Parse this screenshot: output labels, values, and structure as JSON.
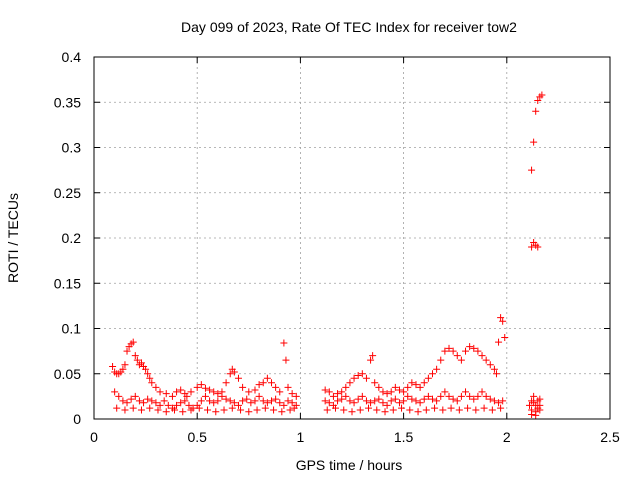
{
  "chart_data": {
    "type": "scatter",
    "title": "Day 099 of 2023, Rate Of TEC Index for receiver tow2",
    "xlabel": "GPS time / hours",
    "ylabel": "ROTI / TECUs",
    "xlim": [
      0,
      2.5
    ],
    "ylim": [
      0,
      0.4
    ],
    "x_ticks": [
      0,
      0.5,
      1,
      1.5,
      2,
      2.5
    ],
    "x_tick_labels": [
      "0",
      "0.5",
      "1",
      "1.5",
      "2",
      "2.5"
    ],
    "y_ticks": [
      0,
      0.05,
      0.1,
      0.15,
      0.2,
      0.25,
      0.3,
      0.35,
      0.4
    ],
    "y_tick_labels": [
      "0",
      "0.05",
      "0.1",
      "0.15",
      "0.2",
      "0.25",
      "0.3",
      "0.35",
      "0.4"
    ],
    "grid": true,
    "marker": "+",
    "series": [
      {
        "color": "#ff0000",
        "points": [
          [
            0.09,
            0.058
          ],
          [
            0.1,
            0.052
          ],
          [
            0.11,
            0.05
          ],
          [
            0.12,
            0.05
          ],
          [
            0.13,
            0.052
          ],
          [
            0.14,
            0.055
          ],
          [
            0.15,
            0.06
          ],
          [
            0.16,
            0.075
          ],
          [
            0.17,
            0.08
          ],
          [
            0.18,
            0.083
          ],
          [
            0.19,
            0.085
          ],
          [
            0.2,
            0.07
          ],
          [
            0.21,
            0.065
          ],
          [
            0.22,
            0.06
          ],
          [
            0.23,
            0.062
          ],
          [
            0.24,
            0.058
          ],
          [
            0.25,
            0.055
          ],
          [
            0.26,
            0.05
          ],
          [
            0.27,
            0.045
          ],
          [
            0.28,
            0.04
          ],
          [
            0.3,
            0.035
          ],
          [
            0.32,
            0.03
          ],
          [
            0.35,
            0.028
          ],
          [
            0.38,
            0.025
          ],
          [
            0.4,
            0.03
          ],
          [
            0.42,
            0.032
          ],
          [
            0.44,
            0.028
          ],
          [
            0.45,
            0.025
          ],
          [
            0.47,
            0.03
          ],
          [
            0.5,
            0.035
          ],
          [
            0.52,
            0.038
          ],
          [
            0.54,
            0.034
          ],
          [
            0.56,
            0.032
          ],
          [
            0.58,
            0.03
          ],
          [
            0.6,
            0.028
          ],
          [
            0.62,
            0.03
          ],
          [
            0.64,
            0.04
          ],
          [
            0.66,
            0.05
          ],
          [
            0.67,
            0.055
          ],
          [
            0.68,
            0.052
          ],
          [
            0.7,
            0.045
          ],
          [
            0.72,
            0.035
          ],
          [
            0.75,
            0.03
          ],
          [
            0.78,
            0.032
          ],
          [
            0.8,
            0.038
          ],
          [
            0.82,
            0.04
          ],
          [
            0.84,
            0.045
          ],
          [
            0.86,
            0.04
          ],
          [
            0.88,
            0.035
          ],
          [
            0.9,
            0.03
          ],
          [
            0.92,
            0.084
          ],
          [
            0.93,
            0.065
          ],
          [
            0.94,
            0.035
          ],
          [
            0.96,
            0.028
          ],
          [
            0.98,
            0.025
          ],
          [
            0.1,
            0.03
          ],
          [
            0.12,
            0.025
          ],
          [
            0.14,
            0.02
          ],
          [
            0.16,
            0.018
          ],
          [
            0.18,
            0.022
          ],
          [
            0.2,
            0.025
          ],
          [
            0.22,
            0.02
          ],
          [
            0.24,
            0.018
          ],
          [
            0.26,
            0.022
          ],
          [
            0.28,
            0.02
          ],
          [
            0.3,
            0.018
          ],
          [
            0.32,
            0.015
          ],
          [
            0.34,
            0.02
          ],
          [
            0.36,
            0.015
          ],
          [
            0.38,
            0.012
          ],
          [
            0.4,
            0.015
          ],
          [
            0.42,
            0.018
          ],
          [
            0.44,
            0.02
          ],
          [
            0.46,
            0.015
          ],
          [
            0.48,
            0.012
          ],
          [
            0.5,
            0.015
          ],
          [
            0.52,
            0.02
          ],
          [
            0.54,
            0.025
          ],
          [
            0.56,
            0.02
          ],
          [
            0.58,
            0.018
          ],
          [
            0.6,
            0.02
          ],
          [
            0.62,
            0.025
          ],
          [
            0.64,
            0.022
          ],
          [
            0.66,
            0.02
          ],
          [
            0.68,
            0.018
          ],
          [
            0.7,
            0.015
          ],
          [
            0.72,
            0.02
          ],
          [
            0.74,
            0.022
          ],
          [
            0.76,
            0.018
          ],
          [
            0.78,
            0.02
          ],
          [
            0.8,
            0.025
          ],
          [
            0.82,
            0.02
          ],
          [
            0.84,
            0.018
          ],
          [
            0.86,
            0.02
          ],
          [
            0.88,
            0.022
          ],
          [
            0.9,
            0.018
          ],
          [
            0.92,
            0.015
          ],
          [
            0.94,
            0.02
          ],
          [
            0.96,
            0.018
          ],
          [
            0.98,
            0.015
          ],
          [
            0.11,
            0.012
          ],
          [
            0.15,
            0.01
          ],
          [
            0.19,
            0.012
          ],
          [
            0.23,
            0.01
          ],
          [
            0.27,
            0.012
          ],
          [
            0.31,
            0.01
          ],
          [
            0.35,
            0.008
          ],
          [
            0.39,
            0.01
          ],
          [
            0.43,
            0.008
          ],
          [
            0.47,
            0.01
          ],
          [
            0.51,
            0.012
          ],
          [
            0.55,
            0.01
          ],
          [
            0.59,
            0.008
          ],
          [
            0.63,
            0.01
          ],
          [
            0.67,
            0.012
          ],
          [
            0.71,
            0.01
          ],
          [
            0.75,
            0.008
          ],
          [
            0.79,
            0.01
          ],
          [
            0.83,
            0.012
          ],
          [
            0.87,
            0.01
          ],
          [
            0.91,
            0.008
          ],
          [
            0.95,
            0.01
          ],
          [
            0.97,
            0.012
          ],
          [
            1.12,
            0.032
          ],
          [
            1.14,
            0.03
          ],
          [
            1.16,
            0.025
          ],
          [
            1.18,
            0.028
          ],
          [
            1.2,
            0.03
          ],
          [
            1.22,
            0.035
          ],
          [
            1.24,
            0.04
          ],
          [
            1.26,
            0.045
          ],
          [
            1.28,
            0.048
          ],
          [
            1.3,
            0.05
          ],
          [
            1.32,
            0.045
          ],
          [
            1.34,
            0.065
          ],
          [
            1.35,
            0.07
          ],
          [
            1.36,
            0.04
          ],
          [
            1.38,
            0.035
          ],
          [
            1.4,
            0.03
          ],
          [
            1.42,
            0.028
          ],
          [
            1.44,
            0.03
          ],
          [
            1.46,
            0.035
          ],
          [
            1.48,
            0.032
          ],
          [
            1.5,
            0.03
          ],
          [
            1.52,
            0.035
          ],
          [
            1.54,
            0.04
          ],
          [
            1.56,
            0.038
          ],
          [
            1.58,
            0.035
          ],
          [
            1.6,
            0.04
          ],
          [
            1.62,
            0.045
          ],
          [
            1.64,
            0.05
          ],
          [
            1.66,
            0.055
          ],
          [
            1.68,
            0.065
          ],
          [
            1.7,
            0.075
          ],
          [
            1.72,
            0.078
          ],
          [
            1.74,
            0.075
          ],
          [
            1.76,
            0.07
          ],
          [
            1.78,
            0.065
          ],
          [
            1.8,
            0.075
          ],
          [
            1.82,
            0.08
          ],
          [
            1.84,
            0.078
          ],
          [
            1.86,
            0.075
          ],
          [
            1.88,
            0.07
          ],
          [
            1.9,
            0.065
          ],
          [
            1.92,
            0.06
          ],
          [
            1.94,
            0.055
          ],
          [
            1.96,
            0.085
          ],
          [
            1.97,
            0.112
          ],
          [
            1.98,
            0.108
          ],
          [
            1.99,
            0.09
          ],
          [
            1.95,
            0.05
          ],
          [
            1.12,
            0.02
          ],
          [
            1.14,
            0.018
          ],
          [
            1.16,
            0.015
          ],
          [
            1.18,
            0.02
          ],
          [
            1.2,
            0.022
          ],
          [
            1.22,
            0.025
          ],
          [
            1.24,
            0.02
          ],
          [
            1.26,
            0.018
          ],
          [
            1.28,
            0.022
          ],
          [
            1.3,
            0.025
          ],
          [
            1.32,
            0.02
          ],
          [
            1.34,
            0.018
          ],
          [
            1.36,
            0.02
          ],
          [
            1.38,
            0.022
          ],
          [
            1.4,
            0.018
          ],
          [
            1.42,
            0.015
          ],
          [
            1.44,
            0.02
          ],
          [
            1.46,
            0.022
          ],
          [
            1.48,
            0.018
          ],
          [
            1.5,
            0.02
          ],
          [
            1.52,
            0.025
          ],
          [
            1.54,
            0.022
          ],
          [
            1.56,
            0.02
          ],
          [
            1.58,
            0.018
          ],
          [
            1.6,
            0.022
          ],
          [
            1.62,
            0.025
          ],
          [
            1.64,
            0.022
          ],
          [
            1.66,
            0.02
          ],
          [
            1.68,
            0.025
          ],
          [
            1.7,
            0.03
          ],
          [
            1.72,
            0.025
          ],
          [
            1.74,
            0.022
          ],
          [
            1.76,
            0.02
          ],
          [
            1.78,
            0.025
          ],
          [
            1.8,
            0.03
          ],
          [
            1.82,
            0.025
          ],
          [
            1.84,
            0.022
          ],
          [
            1.86,
            0.025
          ],
          [
            1.88,
            0.03
          ],
          [
            1.9,
            0.025
          ],
          [
            1.92,
            0.022
          ],
          [
            1.94,
            0.02
          ],
          [
            1.96,
            0.018
          ],
          [
            1.98,
            0.02
          ],
          [
            1.13,
            0.01
          ],
          [
            1.17,
            0.012
          ],
          [
            1.21,
            0.01
          ],
          [
            1.25,
            0.008
          ],
          [
            1.29,
            0.01
          ],
          [
            1.33,
            0.012
          ],
          [
            1.37,
            0.01
          ],
          [
            1.41,
            0.008
          ],
          [
            1.45,
            0.01
          ],
          [
            1.49,
            0.012
          ],
          [
            1.53,
            0.01
          ],
          [
            1.57,
            0.008
          ],
          [
            1.61,
            0.01
          ],
          [
            1.65,
            0.012
          ],
          [
            1.69,
            0.01
          ],
          [
            1.73,
            0.012
          ],
          [
            1.77,
            0.01
          ],
          [
            1.81,
            0.012
          ],
          [
            1.85,
            0.01
          ],
          [
            1.89,
            0.012
          ],
          [
            1.93,
            0.01
          ],
          [
            1.97,
            0.012
          ],
          [
            2.12,
            0.275
          ],
          [
            2.13,
            0.306
          ],
          [
            2.14,
            0.34
          ],
          [
            2.15,
            0.352
          ],
          [
            2.16,
            0.356
          ],
          [
            2.17,
            0.358
          ],
          [
            2.12,
            0.19
          ],
          [
            2.13,
            0.195
          ],
          [
            2.14,
            0.192
          ],
          [
            2.15,
            0.19
          ],
          [
            2.12,
            0.02
          ],
          [
            2.13,
            0.018
          ],
          [
            2.14,
            0.015
          ],
          [
            2.15,
            0.012
          ],
          [
            2.16,
            0.015
          ],
          [
            2.12,
            0.01
          ],
          [
            2.14,
            0.008
          ],
          [
            2.16,
            0.01
          ],
          [
            2.11,
            0.015
          ],
          [
            2.13,
            0.025
          ],
          [
            2.15,
            0.02
          ],
          [
            2.16,
            0.022
          ],
          [
            2.12,
            0.005
          ],
          [
            2.14,
            0.004
          ]
        ]
      }
    ]
  }
}
